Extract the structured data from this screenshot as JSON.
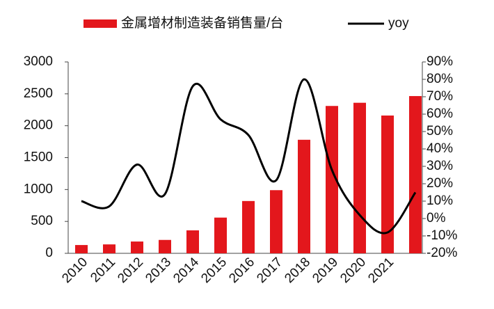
{
  "chart_data": {
    "type": "bar",
    "categories": [
      "2010",
      "2011",
      "2012",
      "2013",
      "2014",
      "2015",
      "2016",
      "2017",
      "2018",
      "2019",
      "2020",
      "2021",
      null
    ],
    "series": [
      {
        "name": "金属增材制造装备销售量/台",
        "type": "bar",
        "color": "#e3171c",
        "values": [
          130,
          140,
          185,
          210,
          360,
          560,
          820,
          990,
          1780,
          2310,
          2360,
          2160,
          2465
        ]
      },
      {
        "name": "yoy",
        "type": "line",
        "axis": "y2",
        "color": "#000000",
        "values": [
          10,
          7,
          31,
          14,
          76,
          57,
          48,
          22,
          80,
          28,
          2,
          -8,
          15
        ]
      }
    ],
    "ylim": [
      0,
      3000
    ],
    "yticks": [
      0,
      500,
      1000,
      1500,
      2000,
      2500,
      3000
    ],
    "y2lim": [
      -20,
      90
    ],
    "y2ticks": [
      {
        "value": -20,
        "label": "-20%"
      },
      {
        "value": -10,
        "label": "-10%"
      },
      {
        "value": 0,
        "label": "0%"
      },
      {
        "value": 10,
        "label": "10%"
      },
      {
        "value": 20,
        "label": "20%"
      },
      {
        "value": 30,
        "label": "30%"
      },
      {
        "value": 40,
        "label": "40%"
      },
      {
        "value": 50,
        "label": "50%"
      },
      {
        "value": 60,
        "label": "60%"
      },
      {
        "value": 70,
        "label": "70%"
      },
      {
        "value": 80,
        "label": "80%"
      },
      {
        "value": 90,
        "label": "90%"
      }
    ],
    "legend": "top",
    "grid": false
  }
}
